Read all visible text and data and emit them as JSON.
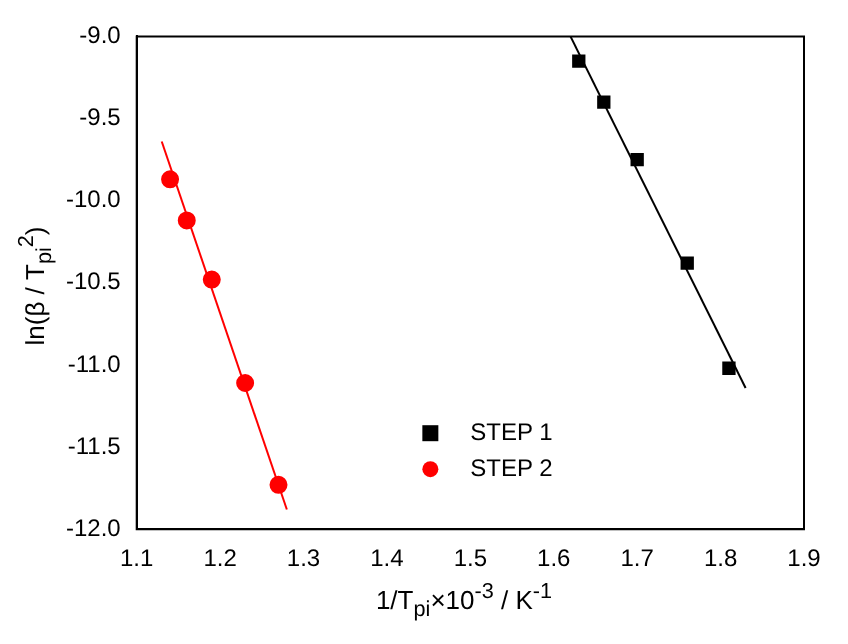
{
  "chart_data": {
    "type": "scatter",
    "xlabel": "1/T$_{pi}$×10$^{-3}$ / K$^{-1}$",
    "ylabel": "ln(β / T$_{pi}$$^{2}$)",
    "xlim": [
      1.1,
      1.9
    ],
    "xticks": [
      1.1,
      1.2,
      1.3,
      1.4,
      1.5,
      1.6,
      1.7,
      1.8,
      1.9
    ],
    "ylim": [
      -12,
      -9
    ],
    "yticks": [
      {
        "value": -12,
        "label": "-12.0"
      },
      -11.5,
      {
        "value": -11,
        "label": "-11.0"
      },
      -10.5,
      {
        "value": -10,
        "label": "-10.0"
      },
      -9.5,
      {
        "value": -9,
        "label": "-9.0"
      }
    ],
    "grid": false,
    "legend": "bottom",
    "marker": "circle",
    "series": [
      {
        "name": "STEP 1",
        "color": "#000000",
        "marker": "square",
        "x": [
          1.63,
          1.66,
          1.7,
          1.76,
          1.81
        ],
        "values": [
          -9.15,
          -9.4,
          -9.75,
          -10.38,
          -11.02
        ]
      },
      {
        "name": "STEP 2",
        "color": "#ff0000",
        "x": [
          1.14,
          1.16,
          1.19,
          1.23,
          1.27
        ],
        "values": [
          -9.87,
          -10.12,
          -10.48,
          -11.11,
          -11.73
        ]
      },
      {
        "type": "line",
        "color": "#000000",
        "marker": "none",
        "x": [
          1.62,
          1.83
        ],
        "values": [
          -9.0,
          -11.14
        ]
      },
      {
        "type": "line",
        "color": "#ff0000",
        "marker": "none",
        "x": [
          1.13,
          1.28
        ],
        "values": [
          -9.64,
          -11.88
        ]
      }
    ]
  }
}
